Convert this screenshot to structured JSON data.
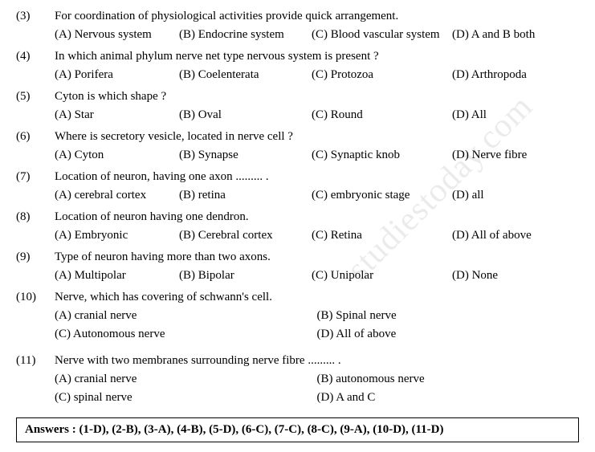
{
  "watermark": "studiestoday.com",
  "questions": [
    {
      "num": "(3)",
      "text": "For coordination of physiological activities provide quick arrangement.",
      "layout": "four",
      "opts": [
        "(A) Nervous system",
        "(B) Endocrine system",
        "(C) Blood vascular system",
        "(D) A and B both"
      ]
    },
    {
      "num": "(4)",
      "text": "In which animal phylum nerve net type nervous system is present ?",
      "layout": "four",
      "opts": [
        "(A) Porifera",
        "(B) Coelenterata",
        "(C) Protozoa",
        "(D) Arthropoda"
      ]
    },
    {
      "num": "(5)",
      "text": "Cyton is which shape ?",
      "layout": "four",
      "opts": [
        "(A) Star",
        "(B) Oval",
        "(C) Round",
        "(D) All"
      ]
    },
    {
      "num": "(6)",
      "text": "Where is secretory vesicle, located in nerve cell ?",
      "layout": "four",
      "opts": [
        "(A) Cyton",
        "(B) Synapse",
        "(C) Synaptic knob",
        "(D) Nerve fibre"
      ]
    },
    {
      "num": "(7)",
      "text": "Location of neuron, having one axon ......... .",
      "layout": "four",
      "opts": [
        "(A) cerebral cortex",
        "(B) retina",
        "(C) embryonic stage",
        "(D) all"
      ]
    },
    {
      "num": "(8)",
      "text": "Location of neuron having one dendron.",
      "layout": "four",
      "opts": [
        "(A) Embryonic",
        "(B) Cerebral cortex",
        "(C) Retina",
        "(D) All of above"
      ]
    },
    {
      "num": "(9)",
      "text": "Type of neuron having more than two axons.",
      "layout": "four",
      "opts": [
        "(A) Multipolar",
        "(B) Bipolar",
        "(C) Unipolar",
        "(D) None"
      ]
    },
    {
      "num": "(10)",
      "text": "Nerve, which has covering of schwann's cell.",
      "layout": "two",
      "opts": [
        "(A) cranial nerve",
        "(B) Spinal nerve",
        "(C) Autonomous nerve",
        "(D) All of above"
      ]
    },
    {
      "num": "(11)",
      "text": "Nerve with two membranes surrounding nerve fibre ......... .",
      "layout": "two",
      "opts": [
        "(A) cranial nerve",
        "(B) autonomous nerve",
        "(C) spinal nerve",
        "(D) A and C"
      ]
    }
  ],
  "answers": "Answers  :  (1-D), (2-B), (3-A), (4-B), (5-D), (6-C), (7-C), (8-C), (9-A), (10-D), (11-D)"
}
